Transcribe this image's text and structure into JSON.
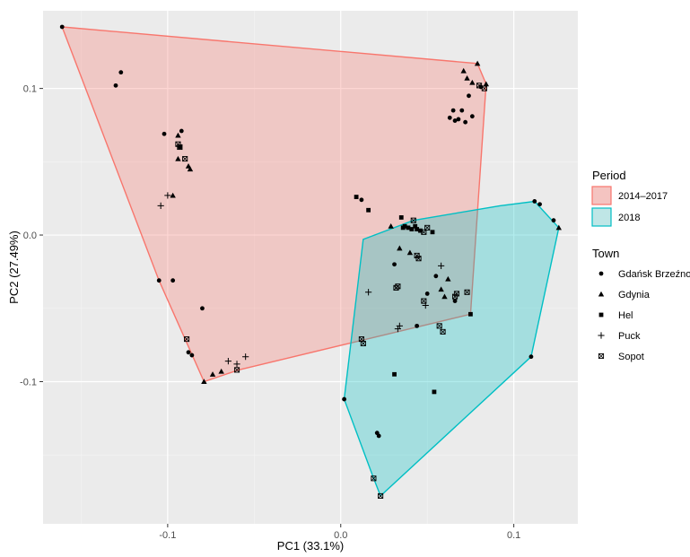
{
  "chart_data": {
    "type": "scatter",
    "xlabel": "PC1 (33.1%)",
    "ylabel": "PC2 (27.49%)",
    "xlim": [
      -0.172,
      0.137
    ],
    "ylim": [
      -0.197,
      0.153
    ],
    "x_ticks": [
      -0.1,
      0.0,
      0.1
    ],
    "x_tick_labels": [
      "-0.1",
      "0.0",
      "0.1"
    ],
    "y_ticks": [
      -0.1,
      0.0,
      0.1
    ],
    "y_tick_labels": [
      "-0.1",
      "0.0",
      "0.1"
    ],
    "grid": true,
    "background": "#ebebeb",
    "legend": {
      "placement": "right",
      "period": {
        "title": "Period",
        "items": [
          {
            "label": "2014–2017",
            "fill": "#f4c4c1",
            "stroke": "#f8766d"
          },
          {
            "label": "2018",
            "fill": "#bfe6e6",
            "stroke": "#00bfc4"
          }
        ]
      },
      "town": {
        "title": "Town",
        "items": [
          {
            "label": "Gdańsk Brzeźno",
            "shape": "circle"
          },
          {
            "label": "Gdynia",
            "shape": "triangle"
          },
          {
            "label": "Hel",
            "shape": "square"
          },
          {
            "label": "Puck",
            "shape": "plus"
          },
          {
            "label": "Sopot",
            "shape": "boxed-x"
          }
        ]
      }
    },
    "hulls": [
      {
        "period": "2014–2017",
        "color_fill": "#f8766d",
        "color_stroke": "#f8766d",
        "points": [
          [
            -0.161,
            0.142
          ],
          [
            0.079,
            0.117
          ],
          [
            0.084,
            0.103
          ],
          [
            0.075,
            -0.054
          ],
          [
            -0.059,
            -0.092
          ],
          [
            -0.079,
            -0.1
          ],
          [
            -0.105,
            -0.031
          ]
        ]
      },
      {
        "period": "2018",
        "color_fill": "#00bfc4",
        "color_stroke": "#00bfc4",
        "points": [
          [
            0.112,
            0.023
          ],
          [
            0.126,
            0.005
          ],
          [
            0.11,
            -0.083
          ],
          [
            0.023,
            -0.178
          ],
          [
            0.019,
            -0.166
          ],
          [
            0.002,
            -0.112
          ],
          [
            0.013,
            -0.003
          ],
          [
            0.042,
            0.01
          ],
          [
            0.092,
            0.02
          ]
        ]
      }
    ],
    "series": [
      {
        "name": "Gdańsk Brzeźno",
        "shape": "circle",
        "points": [
          [
            -0.161,
            0.142
          ],
          [
            -0.127,
            0.111
          ],
          [
            -0.13,
            0.102
          ],
          [
            -0.102,
            0.069
          ],
          [
            -0.092,
            0.071
          ],
          [
            -0.093,
            0.06
          ],
          [
            -0.105,
            -0.031
          ],
          [
            -0.097,
            -0.031
          ],
          [
            -0.08,
            -0.05
          ],
          [
            -0.088,
            -0.08
          ],
          [
            -0.086,
            -0.082
          ],
          [
            0.065,
            0.085
          ],
          [
            0.07,
            0.085
          ],
          [
            0.068,
            0.079
          ],
          [
            0.066,
            0.078
          ],
          [
            0.072,
            0.077
          ],
          [
            0.074,
            0.095
          ],
          [
            0.076,
            0.081
          ],
          [
            0.063,
            0.08
          ],
          [
            0.081,
            0.101
          ],
          [
            0.002,
            -0.112
          ],
          [
            0.021,
            -0.135
          ],
          [
            0.022,
            -0.137
          ],
          [
            0.031,
            -0.02
          ],
          [
            0.05,
            -0.04
          ],
          [
            0.055,
            -0.028
          ],
          [
            0.066,
            -0.045
          ],
          [
            0.044,
            -0.062
          ],
          [
            0.112,
            0.023
          ],
          [
            0.115,
            0.021
          ],
          [
            0.123,
            0.01
          ],
          [
            0.11,
            -0.083
          ],
          [
            0.012,
            0.024
          ]
        ]
      },
      {
        "name": "Gdynia",
        "shape": "triangle",
        "points": [
          [
            -0.094,
            0.068
          ],
          [
            -0.094,
            0.052
          ],
          [
            -0.088,
            0.047
          ],
          [
            -0.087,
            0.045
          ],
          [
            -0.097,
            0.027
          ],
          [
            0.079,
            0.117
          ],
          [
            0.071,
            0.112
          ],
          [
            0.076,
            0.104
          ],
          [
            0.073,
            0.107
          ],
          [
            0.084,
            0.103
          ],
          [
            -0.079,
            -0.1
          ],
          [
            -0.069,
            -0.093
          ],
          [
            -0.074,
            -0.095
          ],
          [
            0.06,
            -0.042
          ],
          [
            0.058,
            -0.037
          ],
          [
            0.062,
            -0.03
          ],
          [
            0.034,
            -0.009
          ],
          [
            0.029,
            0.006
          ],
          [
            0.126,
            0.005
          ],
          [
            0.04,
            -0.012
          ]
        ]
      },
      {
        "name": "Hel",
        "shape": "square",
        "points": [
          [
            0.009,
            0.026
          ],
          [
            0.016,
            0.017
          ],
          [
            0.035,
            0.012
          ],
          [
            0.036,
            0.005
          ],
          [
            0.039,
            0.005
          ],
          [
            0.041,
            0.004
          ],
          [
            0.043,
            0.006
          ],
          [
            0.046,
            0.003
          ],
          [
            0.053,
            0.002
          ],
          [
            0.075,
            -0.054
          ],
          [
            0.031,
            -0.095
          ],
          [
            0.054,
            -0.107
          ],
          [
            0.037,
            0.006
          ],
          [
            0.044,
            0.004
          ]
        ]
      },
      {
        "name": "Puck",
        "shape": "plus",
        "points": [
          [
            -0.104,
            0.02
          ],
          [
            -0.1,
            0.027
          ],
          [
            0.016,
            -0.039
          ],
          [
            0.033,
            -0.064
          ],
          [
            0.034,
            -0.062
          ],
          [
            -0.06,
            -0.088
          ],
          [
            -0.065,
            -0.086
          ],
          [
            -0.055,
            -0.083
          ],
          [
            0.049,
            -0.048
          ],
          [
            0.058,
            -0.021
          ]
        ]
      },
      {
        "name": "Sopot",
        "shape": "boxed-x",
        "points": [
          [
            -0.093,
            0.06
          ],
          [
            -0.09,
            0.052
          ],
          [
            0.044,
            -0.014
          ],
          [
            0.045,
            -0.016
          ],
          [
            0.033,
            -0.035
          ],
          [
            0.032,
            -0.036
          ],
          [
            0.048,
            -0.045
          ],
          [
            0.066,
            -0.042
          ],
          [
            0.067,
            -0.04
          ],
          [
            0.073,
            -0.039
          ],
          [
            0.057,
            -0.062
          ],
          [
            0.059,
            -0.066
          ],
          [
            0.012,
            -0.071
          ],
          [
            0.013,
            -0.074
          ],
          [
            0.019,
            -0.166
          ],
          [
            0.023,
            -0.178
          ],
          [
            -0.089,
            -0.071
          ],
          [
            -0.06,
            -0.092
          ],
          [
            0.083,
            0.1
          ],
          [
            0.042,
            0.01
          ],
          [
            0.048,
            0.002
          ],
          [
            0.05,
            0.005
          ],
          [
            0.08,
            0.102
          ],
          [
            -0.094,
            0.062
          ]
        ]
      }
    ]
  }
}
